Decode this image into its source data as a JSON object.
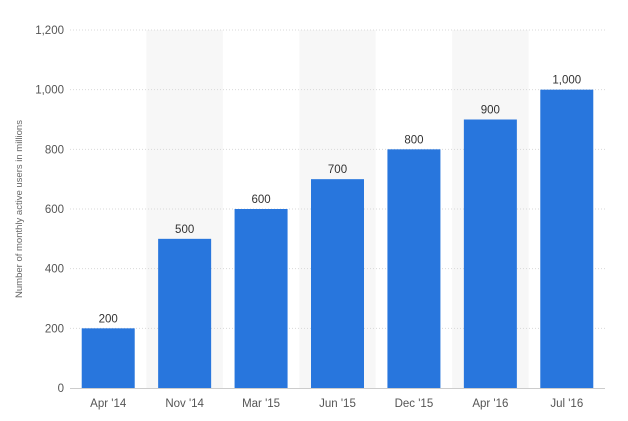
{
  "chart_data": {
    "type": "bar",
    "categories": [
      "Apr '14",
      "Nov '14",
      "Mar '15",
      "Jun '15",
      "Dec '15",
      "Apr '16",
      "Jul '16"
    ],
    "values": [
      200,
      500,
      600,
      700,
      800,
      900,
      1000
    ],
    "value_labels": [
      "200",
      "500",
      "600",
      "700",
      "800",
      "900",
      "1,000"
    ],
    "ylabel": "Number of monthly active users in millions",
    "ylim": [
      0,
      1200
    ],
    "yticks": [
      0,
      200,
      400,
      600,
      800,
      1000,
      1200
    ],
    "ytick_labels": [
      "0",
      "200",
      "400",
      "600",
      "800",
      "1,000",
      "1,200"
    ],
    "grid": true,
    "bar_color": "#2876dd",
    "alt_band_color": "#f7f7f7",
    "grid_color": "#d9d9d9"
  }
}
